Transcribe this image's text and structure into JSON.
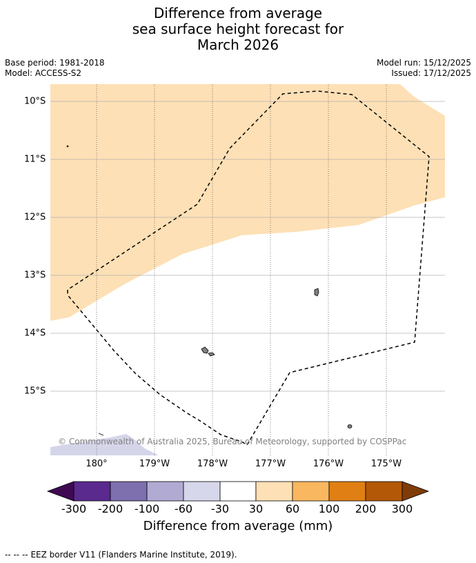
{
  "title": {
    "line1": "Difference from average",
    "line2": "sea surface height forecast for",
    "line3": "March 2026"
  },
  "meta": {
    "base_period": "Base period: 1981-2018",
    "model": "Model: ACCESS-S2",
    "model_run": "Model run: 15/12/2025",
    "issued": "Issued: 17/12/2025"
  },
  "map": {
    "lon_labels": [
      "180°",
      "179°W",
      "178°W",
      "177°W",
      "176°W",
      "175°W"
    ],
    "lat_labels": [
      "10°S",
      "11°S",
      "12°S",
      "13°S",
      "14°S",
      "15°S"
    ],
    "copyright": "© Commonwealth of Australia 2025, Bureau of Meteorology, supported by COSPPac",
    "colors": {
      "band_30_60": "#fde0b5",
      "band_neg60_neg30": "#d5d5ea",
      "land": "#808080",
      "gridline": "#b0b0b0",
      "eez": "#000000"
    }
  },
  "colorbar": {
    "ticks": [
      "-300",
      "-200",
      "-100",
      "-60",
      "-30",
      "30",
      "60",
      "100",
      "200",
      "300"
    ],
    "colors": [
      "#3f0a52",
      "#5a2a8e",
      "#7e6fae",
      "#b1aad3",
      "#d7d7eb",
      "#ffffff",
      "#fde0b5",
      "#f9b75f",
      "#e07f14",
      "#b35806",
      "#7f3b08"
    ],
    "label": "Difference from average (mm)"
  },
  "footer": {
    "legend_symbol": "-- -- --",
    "legend_text": "EEZ border V11 (Flanders Marine Institute, 2019)."
  }
}
